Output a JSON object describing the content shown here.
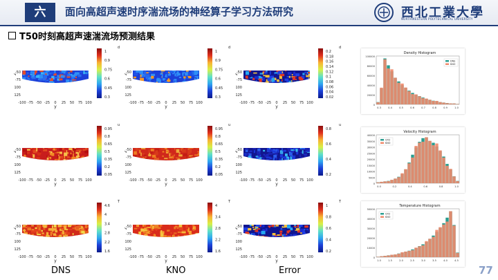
{
  "header": {
    "section_number": "六",
    "title": "面向高超声速时序湍流场的神经算子学习方法研究",
    "logo_text": "西北工業大學",
    "logo_subtext": "NORTHWESTERN POLYTECHNICAL UNIVERSITY"
  },
  "section_title": "T50时刻高超声速湍流场预测结果",
  "column_labels": [
    "DNS",
    "KNO",
    "Error"
  ],
  "page_number": "77",
  "plot_axes": {
    "x_ticks": [
      "-100",
      "-75",
      "-50",
      "-25",
      "0",
      "25",
      "50",
      "75",
      "100"
    ],
    "y_ticks": [
      "-50",
      "-75",
      "-100",
      "-125"
    ],
    "x_label": "y",
    "y_label": "z"
  },
  "rows": [
    {
      "variable": "d",
      "panels": [
        {
          "cb_title": "d",
          "cb_ticks": [
            "1",
            "0.9",
            "0.75",
            "0.6",
            "0.45",
            "0.3"
          ],
          "style": "dns_blue"
        },
        {
          "cb_title": "d",
          "cb_ticks": [
            "1",
            "0.9",
            "0.75",
            "0.6",
            "0.45",
            "0.3"
          ],
          "style": "kno_blue"
        },
        {
          "cb_title": "d",
          "cb_ticks": [
            "0.2",
            "0.18",
            "0.16",
            "0.14",
            "0.12",
            "0.1",
            "0.08",
            "0.06",
            "0.04",
            "0.02"
          ],
          "style": "err"
        }
      ]
    },
    {
      "variable": "u",
      "panels": [
        {
          "cb_title": "u",
          "cb_ticks": [
            "0.95",
            "0.8",
            "0.65",
            "0.5",
            "0.35",
            "0.2",
            "0.05"
          ],
          "style": "dns_red"
        },
        {
          "cb_title": "u",
          "cb_ticks": [
            "0.95",
            "0.8",
            "0.65",
            "0.5",
            "0.35",
            "0.2",
            "0.05"
          ],
          "style": "kno_red"
        },
        {
          "cb_title": "u",
          "cb_ticks": [
            "0.8",
            "0.6",
            "0.4",
            "0.2"
          ],
          "style": "err_low"
        }
      ]
    },
    {
      "variable": "T",
      "panels": [
        {
          "cb_title": "T",
          "cb_ticks": [
            "4.6",
            "4",
            "3.4",
            "2.8",
            "2.2",
            "1.6"
          ],
          "style": "dns_mix"
        },
        {
          "cb_title": "T",
          "cb_ticks": [
            "4",
            "3.4",
            "2.8",
            "2.2",
            "1.6"
          ],
          "style": "kno_mix"
        },
        {
          "cb_title": "T",
          "cb_ticks": [
            "1",
            "0.8",
            "0.6",
            "0.4",
            "0.2"
          ],
          "style": "err"
        }
      ]
    }
  ],
  "histograms": [
    {
      "title": "Density Histogram",
      "legend": [
        "DNS",
        "KNO"
      ],
      "y_ticks": [
        "100000",
        "80000",
        "60000",
        "40000",
        "20000",
        "0"
      ],
      "x_ticks": [
        "0.3",
        "0.4",
        "0.5",
        "0.6",
        "0.7",
        "0.8",
        "0.9",
        "1.0"
      ],
      "shape": "decay"
    },
    {
      "title": "Velocity Histogram",
      "legend": [
        "CFD",
        "KNO"
      ],
      "y_ticks": [
        "40000",
        "35000",
        "30000",
        "25000",
        "20000",
        "15000",
        "10000",
        "5000",
        "0"
      ],
      "x_ticks": [
        "0.0",
        "0.2",
        "0.4",
        "0.6",
        "0.8",
        "1.0"
      ],
      "shape": "bell"
    },
    {
      "title": "Temperature Histogram",
      "legend": [
        "CFD",
        "KNO"
      ],
      "y_ticks": [
        "50000",
        "40000",
        "30000",
        "20000",
        "10000",
        "0"
      ],
      "x_ticks": [
        "1.0",
        "1.5",
        "2.0",
        "2.5",
        "3.0",
        "3.5",
        "4.0",
        "4.5"
      ],
      "shape": "grow"
    }
  ],
  "colors": {
    "header_blue": "#1f3d7a",
    "hist_a": "#2a9d8f",
    "hist_b": "#f08a6c"
  }
}
